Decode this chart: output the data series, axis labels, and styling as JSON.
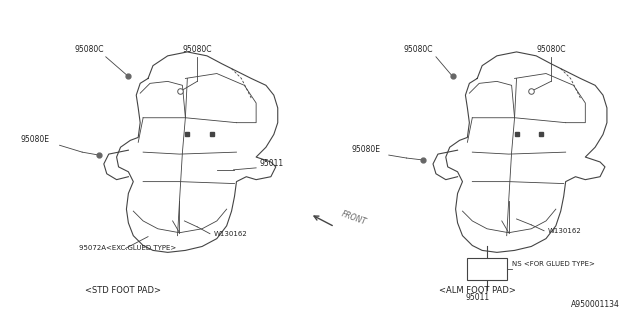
{
  "bg_color": "#ffffff",
  "line_color": "#444444",
  "text_color": "#222222",
  "fig_width": 6.4,
  "fig_height": 3.2,
  "dpi": 100,
  "part_number": "A950001134",
  "left_label": "<STD FOOT PAD>",
  "right_label": "<ALM FOOT PAD>",
  "front_text": "FRONT"
}
